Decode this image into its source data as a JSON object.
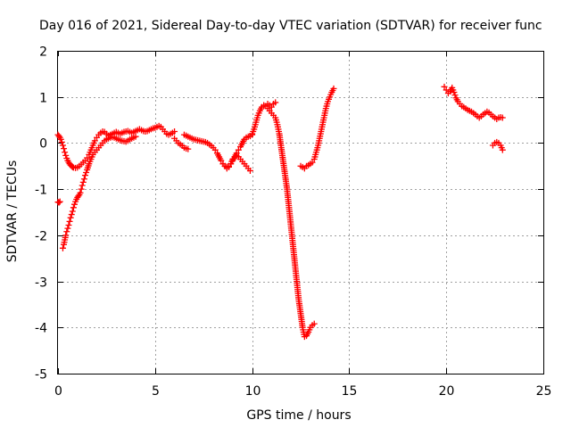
{
  "chart_data": {
    "type": "scatter",
    "title": "Day 016 of 2021, Sidereal Day-to-day VTEC variation (SDTVAR) for receiver func",
    "xlabel": "GPS time / hours",
    "ylabel": "SDTVAR / TECUs",
    "xlim": [
      0,
      25
    ],
    "ylim": [
      -5,
      2
    ],
    "xticks": [
      "0",
      "5",
      "10",
      "15",
      "20",
      "25"
    ],
    "yticks": [
      "-5",
      "-4",
      "-3",
      "-2",
      "-1",
      "0",
      "1",
      "2"
    ],
    "grid": true,
    "marker": "plus",
    "color": "#ff0000",
    "series": [
      {
        "segments": [
          {
            "x": [
              0.0,
              0.05,
              0.1,
              0.15,
              0.2,
              0.25,
              0.3,
              0.35,
              0.4,
              0.45,
              0.5,
              0.55,
              0.6,
              0.65,
              0.7,
              0.75,
              0.8,
              0.9,
              1.0,
              1.1,
              1.2,
              1.3,
              1.4,
              1.5,
              1.6,
              1.7,
              1.8,
              1.9,
              2.0,
              2.1,
              2.2,
              2.3,
              2.4,
              2.5,
              2.6,
              2.7,
              2.8,
              2.9,
              3.0,
              3.1,
              3.2,
              3.3,
              3.4,
              3.5,
              3.6,
              3.7,
              3.8,
              3.9,
              4.0,
              4.1,
              4.2,
              4.3,
              4.4,
              4.5,
              4.6,
              4.7,
              4.8,
              4.9,
              5.0,
              5.1,
              5.2,
              5.3,
              5.4,
              5.5,
              5.6,
              5.7,
              5.8,
              5.9,
              6.0
            ],
            "y": [
              0.18,
              0.15,
              0.12,
              0.08,
              0.02,
              -0.05,
              -0.12,
              -0.2,
              -0.27,
              -0.33,
              -0.38,
              -0.42,
              -0.45,
              -0.48,
              -0.5,
              -0.52,
              -0.53,
              -0.54,
              -0.53,
              -0.5,
              -0.46,
              -0.42,
              -0.38,
              -0.32,
              -0.25,
              -0.15,
              -0.05,
              0.05,
              0.12,
              0.18,
              0.22,
              0.25,
              0.24,
              0.2,
              0.16,
              0.18,
              0.2,
              0.22,
              0.24,
              0.22,
              0.2,
              0.22,
              0.24,
              0.25,
              0.26,
              0.24,
              0.22,
              0.24,
              0.26,
              0.28,
              0.3,
              0.28,
              0.26,
              0.25,
              0.26,
              0.28,
              0.3,
              0.32,
              0.33,
              0.35,
              0.37,
              0.35,
              0.3,
              0.25,
              0.2,
              0.18,
              0.2,
              0.22,
              0.25
            ]
          },
          {
            "x": [
              0.0,
              0.05,
              0.1
            ],
            "y": [
              -1.28,
              -1.29,
              -1.27
            ]
          },
          {
            "x": [
              0.25,
              0.3,
              0.35,
              0.4,
              0.45,
              0.5,
              0.55,
              0.6,
              0.65,
              0.7,
              0.75,
              0.8,
              0.85,
              0.9,
              0.95,
              1.0,
              1.05,
              1.1,
              1.15,
              1.2,
              1.25,
              1.3,
              1.35,
              1.4,
              1.5,
              1.6,
              1.7,
              1.8,
              1.9,
              2.0,
              2.1,
              2.2,
              2.3,
              2.4,
              2.5,
              2.6,
              2.7,
              2.8,
              2.9,
              3.0,
              3.1,
              3.2,
              3.3,
              3.4,
              3.5,
              3.6,
              3.7,
              3.8,
              3.9,
              4.0
            ],
            "y": [
              -2.28,
              -2.2,
              -2.1,
              -2.0,
              -1.92,
              -1.85,
              -1.78,
              -1.7,
              -1.62,
              -1.55,
              -1.48,
              -1.4,
              -1.33,
              -1.27,
              -1.22,
              -1.18,
              -1.15,
              -1.12,
              -1.08,
              -1.0,
              -0.92,
              -0.85,
              -0.78,
              -0.7,
              -0.58,
              -0.45,
              -0.35,
              -0.25,
              -0.2,
              -0.15,
              -0.1,
              -0.05,
              0.0,
              0.05,
              0.08,
              0.1,
              0.12,
              0.13,
              0.12,
              0.1,
              0.08,
              0.06,
              0.05,
              0.04,
              0.03,
              0.05,
              0.08,
              0.1,
              0.12,
              0.14
            ]
          },
          {
            "x": [
              6.5,
              6.6,
              6.7,
              6.8,
              6.9,
              7.0,
              7.1,
              7.2,
              7.3,
              7.4,
              7.5,
              7.6,
              7.7,
              7.8,
              7.9,
              8.0,
              8.1,
              8.2,
              8.3,
              8.4,
              8.5,
              8.6,
              8.7,
              8.8,
              8.9,
              9.0,
              9.1,
              9.2,
              9.3,
              9.4,
              9.5,
              9.6,
              9.7,
              9.8,
              9.9,
              10.0
            ],
            "y": [
              0.18,
              0.16,
              0.14,
              0.12,
              0.1,
              0.08,
              0.07,
              0.06,
              0.05,
              0.04,
              0.03,
              0.02,
              0.0,
              -0.03,
              -0.06,
              -0.1,
              -0.15,
              -0.22,
              -0.3,
              -0.38,
              -0.45,
              -0.5,
              -0.52,
              -0.5,
              -0.45,
              -0.38,
              -0.3,
              -0.22,
              -0.15,
              -0.08,
              0.0,
              0.08,
              0.12,
              0.14,
              0.15,
              0.18
            ]
          },
          {
            "x": [
              6.0,
              6.1,
              6.2,
              6.3,
              6.4,
              6.5,
              6.6,
              6.7
            ],
            "y": [
              0.1,
              0.05,
              0.0,
              -0.03,
              -0.06,
              -0.1,
              -0.12,
              -0.13
            ]
          },
          {
            "x": [
              8.5,
              8.6,
              8.7,
              8.8,
              8.9,
              9.0,
              9.1,
              9.2,
              9.3,
              9.4,
              9.5,
              9.6,
              9.7,
              9.8,
              9.9
            ],
            "y": [
              -0.45,
              -0.5,
              -0.55,
              -0.52,
              -0.45,
              -0.35,
              -0.3,
              -0.28,
              -0.3,
              -0.35,
              -0.4,
              -0.45,
              -0.5,
              -0.55,
              -0.6
            ]
          },
          {
            "x": [
              10.0,
              10.1,
              10.2,
              10.3,
              10.4,
              10.5,
              10.6,
              10.7,
              10.8,
              10.9,
              11.0,
              11.1,
              11.2,
              11.3,
              11.4,
              11.5,
              11.6,
              11.7,
              11.8,
              11.9,
              12.0,
              12.1,
              12.2,
              12.3,
              12.4,
              12.5,
              12.6,
              12.7,
              12.8,
              12.9,
              13.0,
              13.1,
              13.2
            ],
            "y": [
              0.2,
              0.3,
              0.45,
              0.6,
              0.7,
              0.78,
              0.82,
              0.8,
              0.75,
              0.7,
              0.65,
              0.6,
              0.55,
              0.4,
              0.2,
              -0.1,
              -0.4,
              -0.7,
              -1.0,
              -1.4,
              -1.8,
              -2.2,
              -2.6,
              -3.0,
              -3.4,
              -3.7,
              -4.0,
              -4.2,
              -4.18,
              -4.1,
              -4.0,
              -3.95,
              -3.92
            ]
          },
          {
            "x": [
              10.8,
              10.9,
              11.0,
              11.1,
              11.2
            ],
            "y": [
              0.85,
              0.82,
              0.78,
              0.85,
              0.88
            ]
          },
          {
            "x": [
              12.5,
              12.6,
              12.7,
              12.8,
              12.9,
              13.0,
              13.1,
              13.2,
              13.3,
              13.4,
              13.5,
              13.6,
              13.7,
              13.8,
              13.9,
              14.0,
              14.1,
              14.2
            ],
            "y": [
              -0.5,
              -0.52,
              -0.55,
              -0.5,
              -0.48,
              -0.45,
              -0.42,
              -0.35,
              -0.2,
              -0.05,
              0.15,
              0.35,
              0.55,
              0.75,
              0.9,
              1.0,
              1.1,
              1.18
            ]
          },
          {
            "x": [
              19.9,
              20.0,
              20.1,
              20.2,
              20.3,
              20.4,
              20.5,
              20.6,
              20.7,
              20.8,
              20.9,
              21.0,
              21.1,
              21.2,
              21.3,
              21.4,
              21.5,
              21.6,
              21.7,
              21.8,
              21.9,
              22.0,
              22.1,
              22.2,
              22.3,
              22.4,
              22.5,
              22.6,
              22.7,
              22.8,
              22.9
            ],
            "y": [
              1.22,
              1.15,
              1.08,
              1.12,
              1.2,
              1.1,
              0.98,
              0.9,
              0.85,
              0.8,
              0.78,
              0.75,
              0.72,
              0.7,
              0.68,
              0.65,
              0.62,
              0.58,
              0.55,
              0.58,
              0.62,
              0.65,
              0.68,
              0.66,
              0.62,
              0.58,
              0.55,
              0.52,
              0.55,
              0.56,
              0.55
            ]
          },
          {
            "x": [
              22.4,
              22.5,
              22.6,
              22.7,
              22.8,
              22.9
            ],
            "y": [
              -0.05,
              0.0,
              0.02,
              0.0,
              -0.05,
              -0.15
            ]
          }
        ]
      }
    ]
  }
}
